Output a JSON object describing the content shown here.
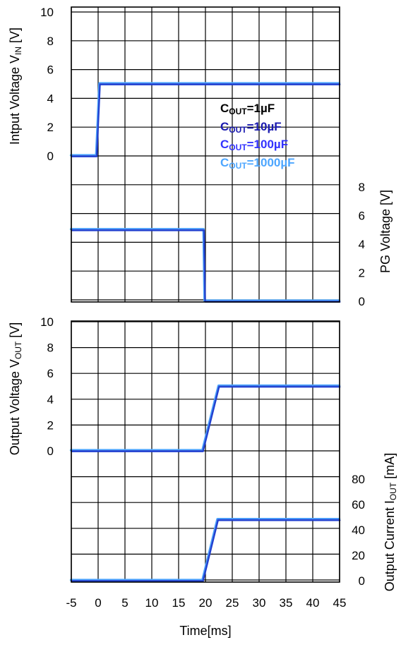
{
  "chart_data": {
    "type": "line",
    "xlabel": "Time[ms]",
    "x_ticks": [
      "-5",
      "0",
      "5",
      "10",
      "15",
      "20",
      "25",
      "30",
      "35",
      "40",
      "45"
    ],
    "xlim": [
      -5,
      45
    ],
    "grid": true,
    "legend": {
      "placement": "top-right of upper plot",
      "entries": [
        {
          "prefix": "C",
          "sub": "OUT",
          "suffix": "=1µF",
          "color": "#000000"
        },
        {
          "prefix": "C",
          "sub": "OUT",
          "suffix": "=10µF",
          "color": "#1a1ab0"
        },
        {
          "prefix": "C",
          "sub": "OUT",
          "suffix": "=100µF",
          "color": "#3333ff"
        },
        {
          "prefix": "C",
          "sub": "OUT",
          "suffix": "=1000µF",
          "color": "#4da6ff"
        }
      ]
    },
    "panels": [
      {
        "id": "vin",
        "ylabel": {
          "prefix": "Intput Voltage V",
          "sub": "IN",
          "suffix": " [V]"
        },
        "y_ticks": [
          "0",
          "2",
          "4",
          "6",
          "8",
          "10"
        ],
        "y_tick_values": [
          0,
          2,
          4,
          6,
          8,
          10
        ],
        "ylim": [
          -4,
          10
        ],
        "side": "left",
        "series": [
          {
            "x": [
              -5,
              -0.3,
              0.3,
              45
            ],
            "y": [
              0,
              0,
              5,
              5
            ]
          }
        ]
      },
      {
        "id": "pg",
        "ylabel": {
          "prefix": "PG Voltage  [V]",
          "sub": "",
          "suffix": ""
        },
        "y_ticks": [
          "0",
          "2",
          "4",
          "6",
          "8"
        ],
        "y_tick_values": [
          0,
          2,
          4,
          6,
          8
        ],
        "ylim": [
          0,
          14
        ],
        "side": "right",
        "series": [
          {
            "x": [
              -5,
              19.7,
              19.9,
              45
            ],
            "y": [
              5,
              5,
              0,
              0
            ]
          }
        ]
      },
      {
        "id": "vout",
        "ylabel": {
          "prefix": "Output Voltage V",
          "sub": "OUT",
          "suffix": " [V]"
        },
        "y_ticks": [
          "0",
          "2",
          "4",
          "6",
          "8",
          "10"
        ],
        "y_tick_values": [
          0,
          2,
          4,
          6,
          8,
          10
        ],
        "ylim": [
          -10,
          10
        ],
        "side": "left",
        "series": [
          {
            "x": [
              -5,
              19.5,
              22.5,
              45
            ],
            "y": [
              0,
              0,
              5,
              5
            ]
          }
        ]
      },
      {
        "id": "iout",
        "ylabel": {
          "prefix": "Output Current  I",
          "sub": "OUT",
          "suffix": " [mA]"
        },
        "y_ticks": [
          "0",
          "20",
          "40",
          "60",
          "80"
        ],
        "y_tick_values": [
          0,
          20,
          40,
          60,
          80
        ],
        "ylim": [
          0,
          200
        ],
        "side": "right",
        "series": [
          {
            "x": [
              -5,
              19.5,
              22.3,
              23,
              45
            ],
            "y": [
              0,
              0,
              48,
              48,
              48
            ]
          }
        ]
      }
    ],
    "trace_colors": [
      "#4da6ff",
      "#3a5dd6",
      "#1f3fd0"
    ]
  }
}
